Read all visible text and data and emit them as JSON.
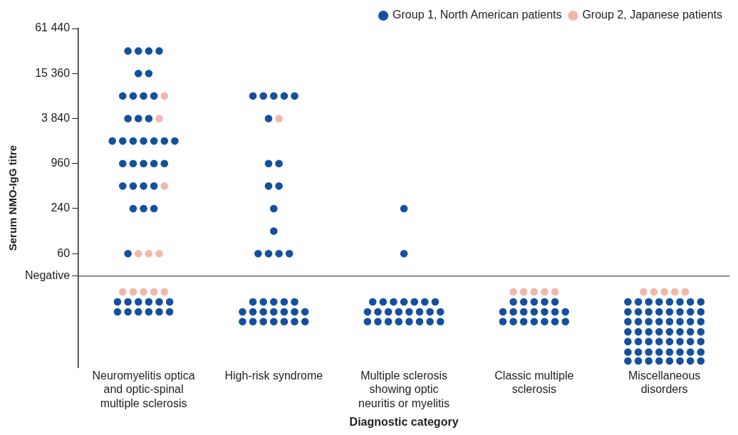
{
  "chart_data": {
    "type": "scatter",
    "xlabel": "Diagnostic category",
    "ylabel": "Serum NMO-IgG titre",
    "categories": [
      "Neuromyelitis optica and optic-spinal multiple sclerosis",
      "High-risk syndrome",
      "Multiple sclerosis showing optic neuritis or myelitis",
      "Classic multiple sclerosis",
      "Miscellaneous disorders"
    ],
    "log": "y",
    "ylim": [
      1.8,
      61440
    ],
    "yticks": [
      {
        "value": 30,
        "label": "Negative"
      },
      60,
      240,
      960,
      {
        "value": 3840,
        "label": "3 840"
      },
      {
        "value": 15360,
        "label": "15 360"
      },
      {
        "value": 61440,
        "label": "61 440"
      }
    ],
    "ref_lines": [
      {
        "axis": "y",
        "value": 30,
        "color": "#666666"
      }
    ],
    "grid": false,
    "legend": "top right",
    "marker": "circle",
    "series": [
      {
        "name": "Group 1, North American patients",
        "color": "#1550a0",
        "x": [
          "Neuromyelitis optica and optic-spinal multiple sclerosis",
          "Neuromyelitis optica and optic-spinal multiple sclerosis",
          "Neuromyelitis optica and optic-spinal multiple sclerosis",
          "Neuromyelitis optica and optic-spinal multiple sclerosis",
          "Neuromyelitis optica and optic-spinal multiple sclerosis",
          "Neuromyelitis optica and optic-spinal multiple sclerosis",
          "Neuromyelitis optica and optic-spinal multiple sclerosis",
          "Neuromyelitis optica and optic-spinal multiple sclerosis",
          "Neuromyelitis optica and optic-spinal multiple sclerosis",
          "Neuromyelitis optica and optic-spinal multiple sclerosis",
          "Neuromyelitis optica and optic-spinal multiple sclerosis",
          "Neuromyelitis optica and optic-spinal multiple sclerosis",
          "Neuromyelitis optica and optic-spinal multiple sclerosis",
          "Neuromyelitis optica and optic-spinal multiple sclerosis",
          "Neuromyelitis optica and optic-spinal multiple sclerosis",
          "Neuromyelitis optica and optic-spinal multiple sclerosis",
          "Neuromyelitis optica and optic-spinal multiple sclerosis",
          "Neuromyelitis optica and optic-spinal multiple sclerosis",
          "Neuromyelitis optica and optic-spinal multiple sclerosis",
          "Neuromyelitis optica and optic-spinal multiple sclerosis",
          "Neuromyelitis optica and optic-spinal multiple sclerosis",
          "Neuromyelitis optica and optic-spinal multiple sclerosis",
          "Neuromyelitis optica and optic-spinal multiple sclerosis",
          "Neuromyelitis optica and optic-spinal multiple sclerosis",
          "Neuromyelitis optica and optic-spinal multiple sclerosis",
          "Neuromyelitis optica and optic-spinal multiple sclerosis",
          "Neuromyelitis optica and optic-spinal multiple sclerosis",
          "Neuromyelitis optica and optic-spinal multiple sclerosis",
          "Neuromyelitis optica and optic-spinal multiple sclerosis",
          "Neuromyelitis optica and optic-spinal multiple sclerosis",
          "Neuromyelitis optica and optic-spinal multiple sclerosis",
          "Neuromyelitis optica and optic-spinal multiple sclerosis",
          "Neuromyelitis optica and optic-spinal multiple sclerosis",
          "Neuromyelitis optica and optic-spinal multiple sclerosis",
          "Neuromyelitis optica and optic-spinal multiple sclerosis",
          "Neuromyelitis optica and optic-spinal multiple sclerosis",
          "Neuromyelitis optica and optic-spinal multiple sclerosis",
          "Neuromyelitis optica and optic-spinal multiple sclerosis",
          "Neuromyelitis optica and optic-spinal multiple sclerosis",
          "Neuromyelitis optica and optic-spinal multiple sclerosis",
          "Neuromyelitis optica and optic-spinal multiple sclerosis",
          "Neuromyelitis optica and optic-spinal multiple sclerosis",
          "Neuromyelitis optica and optic-spinal multiple sclerosis",
          "Neuromyelitis optica and optic-spinal multiple sclerosis",
          "Neuromyelitis optica and optic-spinal multiple sclerosis",
          "High-risk syndrome",
          "High-risk syndrome",
          "High-risk syndrome",
          "High-risk syndrome",
          "High-risk syndrome",
          "High-risk syndrome",
          "High-risk syndrome",
          "High-risk syndrome",
          "High-risk syndrome",
          "High-risk syndrome",
          "High-risk syndrome",
          "High-risk syndrome",
          "High-risk syndrome",
          "High-risk syndrome",
          "High-risk syndrome",
          "High-risk syndrome",
          "High-risk syndrome",
          "High-risk syndrome",
          "High-risk syndrome",
          "High-risk syndrome",
          "High-risk syndrome",
          "High-risk syndrome",
          "High-risk syndrome",
          "High-risk syndrome",
          "High-risk syndrome",
          "High-risk syndrome",
          "High-risk syndrome",
          "High-risk syndrome",
          "High-risk syndrome",
          "High-risk syndrome",
          "High-risk syndrome",
          "High-risk syndrome",
          "High-risk syndrome",
          "High-risk syndrome",
          "High-risk syndrome",
          "Multiple sclerosis showing optic neuritis or myelitis",
          "Multiple sclerosis showing optic neuritis or myelitis",
          "Multiple sclerosis showing optic neuritis or myelitis",
          "Multiple sclerosis showing optic neuritis or myelitis",
          "Multiple sclerosis showing optic neuritis or myelitis",
          "Multiple sclerosis showing optic neuritis or myelitis",
          "Multiple sclerosis showing optic neuritis or myelitis",
          "Multiple sclerosis showing optic neuritis or myelitis",
          "Multiple sclerosis showing optic neuritis or myelitis",
          "Multiple sclerosis showing optic neuritis or myelitis",
          "Multiple sclerosis showing optic neuritis or myelitis",
          "Multiple sclerosis showing optic neuritis or myelitis",
          "Multiple sclerosis showing optic neuritis or myelitis",
          "Multiple sclerosis showing optic neuritis or myelitis",
          "Multiple sclerosis showing optic neuritis or myelitis",
          "Multiple sclerosis showing optic neuritis or myelitis",
          "Multiple sclerosis showing optic neuritis or myelitis",
          "Multiple sclerosis showing optic neuritis or myelitis",
          "Multiple sclerosis showing optic neuritis or myelitis",
          "Multiple sclerosis showing optic neuritis or myelitis",
          "Multiple sclerosis showing optic neuritis or myelitis",
          "Multiple sclerosis showing optic neuritis or myelitis",
          "Multiple sclerosis showing optic neuritis or myelitis",
          "Multiple sclerosis showing optic neuritis or myelitis",
          "Multiple sclerosis showing optic neuritis or myelitis",
          "Classic multiple sclerosis",
          "Classic multiple sclerosis",
          "Classic multiple sclerosis",
          "Classic multiple sclerosis",
          "Classic multiple sclerosis",
          "Classic multiple sclerosis",
          "Classic multiple sclerosis",
          "Classic multiple sclerosis",
          "Classic multiple sclerosis",
          "Classic multiple sclerosis",
          "Classic multiple sclerosis",
          "Classic multiple sclerosis",
          "Classic multiple sclerosis",
          "Classic multiple sclerosis",
          "Classic multiple sclerosis",
          "Classic multiple sclerosis",
          "Classic multiple sclerosis",
          "Classic multiple sclerosis",
          "Classic multiple sclerosis",
          "Miscellaneous disorders",
          "Miscellaneous disorders",
          "Miscellaneous disorders",
          "Miscellaneous disorders",
          "Miscellaneous disorders",
          "Miscellaneous disorders",
          "Miscellaneous disorders",
          "Miscellaneous disorders",
          "Miscellaneous disorders",
          "Miscellaneous disorders",
          "Miscellaneous disorders",
          "Miscellaneous disorders",
          "Miscellaneous disorders",
          "Miscellaneous disorders",
          "Miscellaneous disorders",
          "Miscellaneous disorders",
          "Miscellaneous disorders",
          "Miscellaneous disorders",
          "Miscellaneous disorders",
          "Miscellaneous disorders",
          "Miscellaneous disorders",
          "Miscellaneous disorders",
          "Miscellaneous disorders",
          "Miscellaneous disorders",
          "Miscellaneous disorders",
          "Miscellaneous disorders",
          "Miscellaneous disorders",
          "Miscellaneous disorders",
          "Miscellaneous disorders",
          "Miscellaneous disorders",
          "Miscellaneous disorders",
          "Miscellaneous disorders",
          "Miscellaneous disorders",
          "Miscellaneous disorders",
          "Miscellaneous disorders",
          "Miscellaneous disorders",
          "Miscellaneous disorders",
          "Miscellaneous disorders",
          "Miscellaneous disorders",
          "Miscellaneous disorders",
          "Miscellaneous disorders",
          "Miscellaneous disorders",
          "Miscellaneous disorders",
          "Miscellaneous disorders",
          "Miscellaneous disorders",
          "Miscellaneous disorders",
          "Miscellaneous disorders",
          "Miscellaneous disorders",
          "Miscellaneous disorders",
          "Miscellaneous disorders",
          "Miscellaneous disorders",
          "Miscellaneous disorders",
          "Miscellaneous disorders",
          "Miscellaneous disorders",
          "Miscellaneous disorders",
          "Miscellaneous disorders"
        ],
        "values": [
          30720,
          30720,
          30720,
          30720,
          15360,
          15360,
          7680,
          7680,
          7680,
          7680,
          3840,
          3840,
          3840,
          1920,
          1920,
          1920,
          1920,
          1920,
          1920,
          1920,
          960,
          960,
          960,
          960,
          960,
          480,
          480,
          480,
          480,
          240,
          240,
          240,
          60,
          13.6,
          13.6,
          13.6,
          13.6,
          13.6,
          13.6,
          10,
          10,
          10,
          10,
          10,
          10,
          7680,
          7680,
          7680,
          7680,
          7680,
          3840,
          960,
          960,
          480,
          480,
          240,
          120,
          60,
          60,
          60,
          60,
          13.6,
          13.6,
          13.6,
          13.6,
          13.6,
          10,
          10,
          10,
          10,
          10,
          10,
          10,
          7.4,
          7.4,
          7.4,
          7.4,
          7.4,
          7.4,
          7.4,
          240,
          60,
          13.6,
          13.6,
          13.6,
          13.6,
          13.6,
          13.6,
          13.6,
          10,
          10,
          10,
          10,
          10,
          10,
          10,
          10,
          7.4,
          7.4,
          7.4,
          7.4,
          7.4,
          7.4,
          7.4,
          7.4,
          13.6,
          13.6,
          13.6,
          13.6,
          13.6,
          10,
          10,
          10,
          10,
          10,
          10,
          10,
          7.4,
          7.4,
          7.4,
          7.4,
          7.4,
          7.4,
          7.4,
          13.6,
          13.6,
          13.6,
          13.6,
          13.6,
          13.6,
          13.6,
          13.6,
          10,
          10,
          10,
          10,
          10,
          10,
          10,
          10,
          7.4,
          7.4,
          7.4,
          7.4,
          7.4,
          7.4,
          7.4,
          7.4,
          5.4,
          5.4,
          5.4,
          5.4,
          5.4,
          5.4,
          5.4,
          5.4,
          4,
          4,
          4,
          4,
          4,
          4,
          4,
          4,
          2.9,
          2.9,
          2.9,
          2.9,
          2.9,
          2.9,
          2.9,
          2.9,
          2.2,
          2.2,
          2.2,
          2.2,
          2.2,
          2.2,
          2.2,
          2.2
        ]
      },
      {
        "name": "Group 2, Japanese patients",
        "color": "#f0b8ab",
        "x": [
          "Neuromyelitis optica and optic-spinal multiple sclerosis",
          "Neuromyelitis optica and optic-spinal multiple sclerosis",
          "Neuromyelitis optica and optic-spinal multiple sclerosis",
          "Neuromyelitis optica and optic-spinal multiple sclerosis",
          "Neuromyelitis optica and optic-spinal multiple sclerosis",
          "Neuromyelitis optica and optic-spinal multiple sclerosis",
          "Neuromyelitis optica and optic-spinal multiple sclerosis",
          "Neuromyelitis optica and optic-spinal multiple sclerosis",
          "Neuromyelitis optica and optic-spinal multiple sclerosis",
          "Neuromyelitis optica and optic-spinal multiple sclerosis",
          "Neuromyelitis optica and optic-spinal multiple sclerosis",
          "High-risk syndrome",
          "Classic multiple sclerosis",
          "Classic multiple sclerosis",
          "Classic multiple sclerosis",
          "Classic multiple sclerosis",
          "Classic multiple sclerosis",
          "Miscellaneous disorders",
          "Miscellaneous disorders",
          "Miscellaneous disorders",
          "Miscellaneous disorders",
          "Miscellaneous disorders"
        ],
        "values": [
          7680,
          3840,
          480,
          60,
          60,
          60,
          18.5,
          18.5,
          18.5,
          18.5,
          18.5,
          3840,
          18.5,
          18.5,
          18.5,
          18.5,
          18.5,
          18.5,
          18.5,
          18.5,
          18.5,
          18.5
        ]
      }
    ]
  }
}
